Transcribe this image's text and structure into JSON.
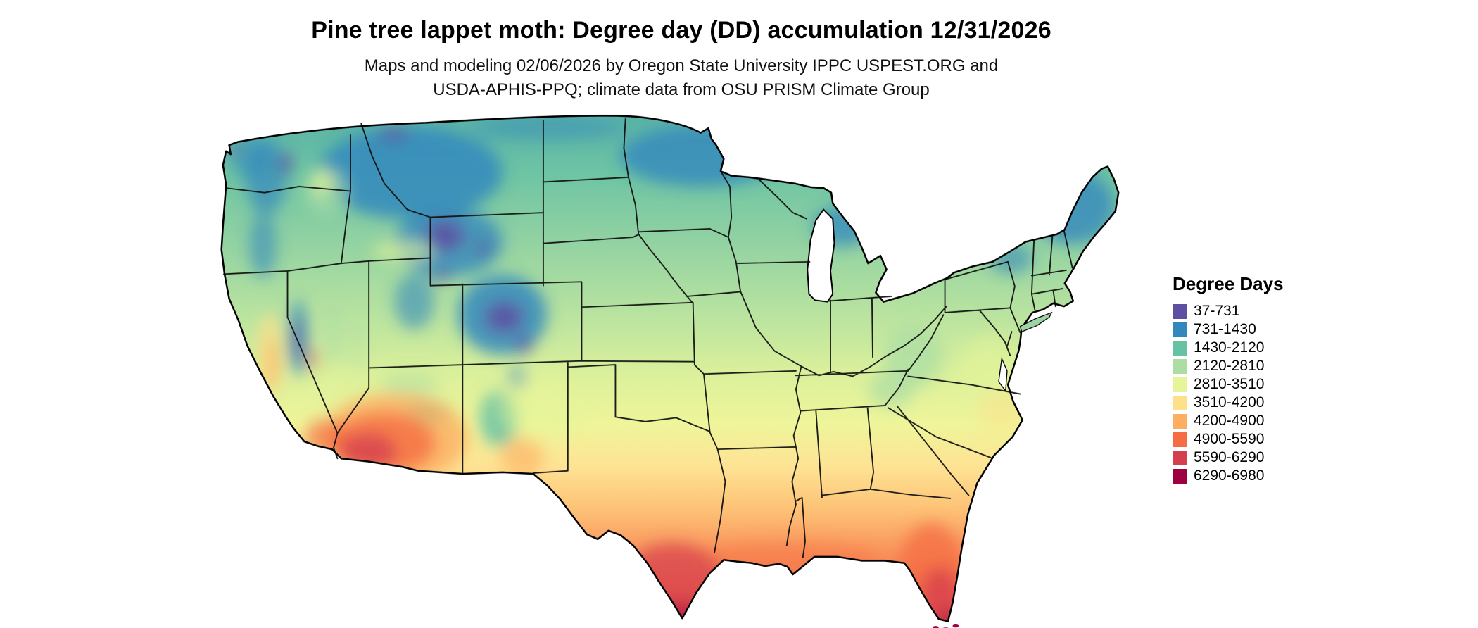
{
  "header": {
    "title": "Pine tree lappet moth: Degree day (DD) accumulation 12/31/2026",
    "subtitle_line1": "Maps and modeling 02/06/2026 by Oregon State University IPPC USPEST.ORG and",
    "subtitle_line2": "USDA-APHIS-PPQ; climate data from OSU PRISM Climate Group"
  },
  "legend": {
    "title": "Degree Days",
    "items": [
      {
        "label": "37-731",
        "color": "#5e4fa2"
      },
      {
        "label": "731-1430",
        "color": "#3288bd"
      },
      {
        "label": "1430-2120",
        "color": "#66c2a5"
      },
      {
        "label": "2120-2810",
        "color": "#abdda4"
      },
      {
        "label": "2810-3510",
        "color": "#e6f598"
      },
      {
        "label": "3510-4200",
        "color": "#fee08b"
      },
      {
        "label": "4200-4900",
        "color": "#fdae61"
      },
      {
        "label": "4900-5590",
        "color": "#f46d43"
      },
      {
        "label": "5590-6290",
        "color": "#d53e4f"
      },
      {
        "label": "6290-6980",
        "color": "#9e0142"
      }
    ]
  },
  "map": {
    "region": "Contiguous United States",
    "kind": "degree-day accumulation raster with state boundaries"
  }
}
